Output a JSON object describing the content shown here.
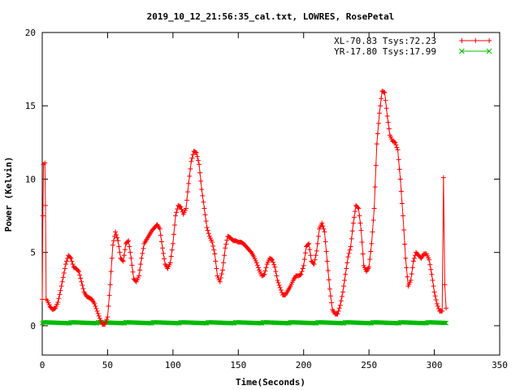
{
  "chart_data": {
    "type": "line",
    "title": "2019_10_12_21:56:35_cal.txt, LOWRES, RosePetal",
    "xlabel": "Time(Seconds)",
    "ylabel": "Power (Kelvin)",
    "xlim": [
      0,
      350
    ],
    "ylim": [
      -2,
      20
    ],
    "xticks": [
      0,
      50,
      100,
      150,
      200,
      250,
      300,
      350
    ],
    "yticks": [
      0,
      5,
      10,
      15,
      20
    ],
    "grid": false,
    "legend_position": "top-right",
    "series": [
      {
        "name": "XL-70.83 Tsys:72.23",
        "color": "#ff0000",
        "marker": "+",
        "points": [
          [
            0,
            1.8
          ],
          [
            0.5,
            7.5
          ],
          [
            1,
            11.0
          ],
          [
            2,
            11.1
          ],
          [
            2.5,
            8.2
          ],
          [
            3,
            1.8
          ],
          [
            4,
            1.7
          ],
          [
            6,
            1.3
          ],
          [
            8,
            1.1
          ],
          [
            10,
            1.2
          ],
          [
            12,
            1.6
          ],
          [
            14,
            2.4
          ],
          [
            16,
            3.3
          ],
          [
            18,
            4.2
          ],
          [
            20,
            4.8
          ],
          [
            22,
            4.6
          ],
          [
            24,
            4.0
          ],
          [
            26,
            3.9
          ],
          [
            28,
            3.7
          ],
          [
            30,
            3.0
          ],
          [
            32,
            2.3
          ],
          [
            34,
            2.0
          ],
          [
            36,
            1.9
          ],
          [
            38,
            1.8
          ],
          [
            40,
            1.5
          ],
          [
            42,
            1.0
          ],
          [
            44,
            0.5
          ],
          [
            46,
            0.1
          ],
          [
            48,
            0.1
          ],
          [
            50,
            0.6
          ],
          [
            52,
            2.8
          ],
          [
            54,
            5.5
          ],
          [
            56,
            6.4
          ],
          [
            58,
            5.8
          ],
          [
            60,
            4.6
          ],
          [
            62,
            4.4
          ],
          [
            64,
            5.6
          ],
          [
            66,
            5.8
          ],
          [
            68,
            4.6
          ],
          [
            70,
            3.2
          ],
          [
            72,
            3.0
          ],
          [
            74,
            3.4
          ],
          [
            76,
            4.6
          ],
          [
            78,
            5.6
          ],
          [
            80,
            5.9
          ],
          [
            82,
            6.2
          ],
          [
            84,
            6.5
          ],
          [
            86,
            6.7
          ],
          [
            88,
            6.9
          ],
          [
            90,
            6.6
          ],
          [
            92,
            5.3
          ],
          [
            94,
            4.2
          ],
          [
            96,
            3.9
          ],
          [
            98,
            4.3
          ],
          [
            100,
            5.6
          ],
          [
            102,
            7.5
          ],
          [
            104,
            8.2
          ],
          [
            106,
            8.1
          ],
          [
            108,
            7.6
          ],
          [
            110,
            8.0
          ],
          [
            112,
            9.7
          ],
          [
            114,
            11.2
          ],
          [
            116,
            11.9
          ],
          [
            118,
            11.8
          ],
          [
            120,
            11.0
          ],
          [
            122,
            9.3
          ],
          [
            124,
            8.0
          ],
          [
            126,
            6.7
          ],
          [
            128,
            6.1
          ],
          [
            130,
            5.7
          ],
          [
            132,
            4.9
          ],
          [
            134,
            3.4
          ],
          [
            136,
            3.0
          ],
          [
            138,
            3.8
          ],
          [
            140,
            5.3
          ],
          [
            142,
            6.1
          ],
          [
            144,
            6.0
          ],
          [
            146,
            5.8
          ],
          [
            148,
            5.8
          ],
          [
            150,
            5.7
          ],
          [
            152,
            5.7
          ],
          [
            154,
            5.6
          ],
          [
            156,
            5.4
          ],
          [
            158,
            5.2
          ],
          [
            160,
            5.0
          ],
          [
            162,
            4.7
          ],
          [
            164,
            4.3
          ],
          [
            166,
            3.8
          ],
          [
            168,
            3.4
          ],
          [
            170,
            3.5
          ],
          [
            172,
            4.2
          ],
          [
            174,
            4.6
          ],
          [
            176,
            4.5
          ],
          [
            178,
            4.0
          ],
          [
            180,
            3.1
          ],
          [
            182,
            2.6
          ],
          [
            184,
            2.1
          ],
          [
            186,
            2.1
          ],
          [
            188,
            2.4
          ],
          [
            190,
            2.7
          ],
          [
            192,
            3.1
          ],
          [
            194,
            3.4
          ],
          [
            196,
            3.4
          ],
          [
            198,
            3.5
          ],
          [
            200,
            4.1
          ],
          [
            202,
            5.4
          ],
          [
            204,
            5.6
          ],
          [
            206,
            4.4
          ],
          [
            208,
            4.2
          ],
          [
            210,
            5.1
          ],
          [
            212,
            6.6
          ],
          [
            214,
            7.0
          ],
          [
            216,
            6.4
          ],
          [
            218,
            4.4
          ],
          [
            220,
            2.5
          ],
          [
            222,
            1.1
          ],
          [
            224,
            0.8
          ],
          [
            226,
            0.8
          ],
          [
            228,
            1.4
          ],
          [
            230,
            2.3
          ],
          [
            232,
            3.5
          ],
          [
            234,
            4.7
          ],
          [
            236,
            5.4
          ],
          [
            238,
            7.0
          ],
          [
            240,
            8.2
          ],
          [
            242,
            8.0
          ],
          [
            244,
            6.5
          ],
          [
            246,
            4.1
          ],
          [
            248,
            3.7
          ],
          [
            250,
            4.0
          ],
          [
            252,
            5.6
          ],
          [
            254,
            8.0
          ],
          [
            256,
            12.4
          ],
          [
            258,
            14.5
          ],
          [
            260,
            16.0
          ],
          [
            262,
            15.9
          ],
          [
            264,
            14.3
          ],
          [
            266,
            13.0
          ],
          [
            268,
            12.6
          ],
          [
            270,
            12.5
          ],
          [
            272,
            12.0
          ],
          [
            274,
            10.0
          ],
          [
            276,
            7.5
          ],
          [
            278,
            4.6
          ],
          [
            280,
            2.7
          ],
          [
            282,
            3.1
          ],
          [
            284,
            4.4
          ],
          [
            286,
            5.0
          ],
          [
            288,
            4.8
          ],
          [
            290,
            4.6
          ],
          [
            292,
            4.9
          ],
          [
            294,
            4.9
          ],
          [
            296,
            4.5
          ],
          [
            298,
            3.5
          ],
          [
            300,
            2.3
          ],
          [
            302,
            1.5
          ],
          [
            304,
            1.0
          ],
          [
            306,
            1.0
          ],
          [
            307,
            10.1
          ],
          [
            308,
            2.8
          ],
          [
            309,
            1.2
          ]
        ]
      },
      {
        "name": "YR-17.80 Tsys:17.99",
        "color": "#00bb00",
        "marker": "x",
        "baseline": 0.2,
        "x_range": [
          0,
          309
        ],
        "x_step": 0.75
      }
    ]
  }
}
